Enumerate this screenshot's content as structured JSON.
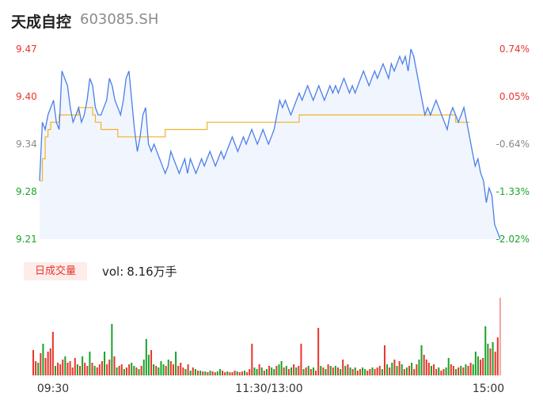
{
  "header": {
    "name": "天成自控",
    "code": "603085.SH"
  },
  "volume_panel": {
    "badge": "日成交量",
    "vol_label": "vol:",
    "vol_value": "8.16万手"
  },
  "colors": {
    "price_line": "#4a7fe8",
    "avg_line": "#f0b429",
    "up": "#e8362c",
    "down": "#1aa32a",
    "neutral": "#888888"
  },
  "chart_data": [
    {
      "type": "line",
      "title": "",
      "x_labels": [
        "09:30",
        "11:30/13:00",
        "15:00"
      ],
      "y_left_ticks": [
        "9.47",
        "9.40",
        "9.34",
        "9.28",
        "9.21"
      ],
      "y_right_ticks": [
        "0.74%",
        "0.05%",
        "-0.64%",
        "-1.33%",
        "-2.02%"
      ],
      "ylim": [
        9.21,
        9.47
      ],
      "series": [
        {
          "values": [
            9.29,
            9.37,
            9.36,
            9.38,
            9.39,
            9.4,
            9.37,
            9.36,
            9.44,
            9.43,
            9.42,
            9.39,
            9.37,
            9.38,
            9.39,
            9.37,
            9.38,
            9.4,
            9.43,
            9.42,
            9.39,
            9.38,
            9.38,
            9.39,
            9.4,
            9.43,
            9.42,
            9.4,
            9.39,
            9.38,
            9.4,
            9.43,
            9.44,
            9.4,
            9.36,
            9.33,
            9.35,
            9.38,
            9.39,
            9.34,
            9.33,
            9.34,
            9.33,
            9.32,
            9.31,
            9.3,
            9.31,
            9.33,
            9.32,
            9.31,
            9.3,
            9.31,
            9.32,
            9.3,
            9.32,
            9.31,
            9.3,
            9.31,
            9.32,
            9.31,
            9.32,
            9.33,
            9.32,
            9.31,
            9.32,
            9.33,
            9.32,
            9.33,
            9.34,
            9.35,
            9.34,
            9.33,
            9.34,
            9.35,
            9.34,
            9.35,
            9.36,
            9.35,
            9.34,
            9.35,
            9.36,
            9.35,
            9.34,
            9.35,
            9.36,
            9.38,
            9.4,
            9.39,
            9.4,
            9.39,
            9.38,
            9.39,
            9.4,
            9.41,
            9.4,
            9.41,
            9.42,
            9.41,
            9.4,
            9.41,
            9.42,
            9.41,
            9.4,
            9.41,
            9.42,
            9.41,
            9.42,
            9.41,
            9.42,
            9.43,
            9.42,
            9.41,
            9.42,
            9.41,
            9.42,
            9.43,
            9.44,
            9.43,
            9.42,
            9.43,
            9.44,
            9.43,
            9.44,
            9.45,
            9.44,
            9.43,
            9.45,
            9.44,
            9.45,
            9.46,
            9.45,
            9.46,
            9.44,
            9.47,
            9.46,
            9.44,
            9.42,
            9.4,
            9.38,
            9.39,
            9.38,
            9.39,
            9.4,
            9.39,
            9.38,
            9.37,
            9.36,
            9.38,
            9.39,
            9.38,
            9.37,
            9.38,
            9.39,
            9.37,
            9.35,
            9.33,
            9.31,
            9.32,
            9.3,
            9.29,
            9.26,
            9.28,
            9.27,
            9.23,
            9.22,
            9.21
          ],
          "color": "#4a7fe8"
        },
        {
          "values": [
            9.29,
            9.32,
            9.35,
            9.36,
            9.37,
            9.37,
            9.37,
            9.38,
            9.38,
            9.38,
            9.38,
            9.38,
            9.38,
            9.38,
            9.39,
            9.39,
            9.39,
            9.39,
            9.39,
            9.38,
            9.37,
            9.37,
            9.36,
            9.36,
            9.36,
            9.36,
            9.36,
            9.36,
            9.35,
            9.35,
            9.35,
            9.35,
            9.35,
            9.35,
            9.35,
            9.35,
            9.35,
            9.35,
            9.35,
            9.35,
            9.35,
            9.35,
            9.35,
            9.35,
            9.35,
            9.36,
            9.36,
            9.36,
            9.36,
            9.36,
            9.36,
            9.36,
            9.36,
            9.36,
            9.36,
            9.36,
            9.36,
            9.36,
            9.36,
            9.36,
            9.37,
            9.37,
            9.37,
            9.37,
            9.37,
            9.37,
            9.37,
            9.37,
            9.37,
            9.37,
            9.37,
            9.37,
            9.37,
            9.37,
            9.37,
            9.37,
            9.37,
            9.37,
            9.37,
            9.37,
            9.37,
            9.37,
            9.37,
            9.37,
            9.37,
            9.37,
            9.37,
            9.37,
            9.37,
            9.37,
            9.37,
            9.37,
            9.37,
            9.38,
            9.38,
            9.38,
            9.38,
            9.38,
            9.38,
            9.38,
            9.38,
            9.38,
            9.38,
            9.38,
            9.38,
            9.38,
            9.38,
            9.38,
            9.38,
            9.38,
            9.38,
            9.38,
            9.38,
            9.38,
            9.38,
            9.38,
            9.38,
            9.38,
            9.38,
            9.38,
            9.38,
            9.38,
            9.38,
            9.38,
            9.38,
            9.38,
            9.38,
            9.38,
            9.38,
            9.38,
            9.38,
            9.38,
            9.38,
            9.38,
            9.38,
            9.38,
            9.38,
            9.38,
            9.38,
            9.38,
            9.38,
            9.38,
            9.38,
            9.38,
            9.38,
            9.38,
            9.38,
            9.38,
            9.38,
            9.37,
            9.37,
            9.37,
            9.37,
            9.37,
            9.37
          ],
          "color": "#f0b429"
        }
      ]
    },
    {
      "type": "bar",
      "title": "",
      "bars": [
        [
          32,
          "u"
        ],
        [
          18,
          "u"
        ],
        [
          16,
          "d"
        ],
        [
          28,
          "u"
        ],
        [
          40,
          "d"
        ],
        [
          22,
          "u"
        ],
        [
          30,
          "u"
        ],
        [
          34,
          "u"
        ],
        [
          55,
          "u"
        ],
        [
          12,
          "d"
        ],
        [
          16,
          "u"
        ],
        [
          14,
          "u"
        ],
        [
          20,
          "u"
        ],
        [
          24,
          "d"
        ],
        [
          16,
          "u"
        ],
        [
          18,
          "u"
        ],
        [
          10,
          "u"
        ],
        [
          22,
          "u"
        ],
        [
          14,
          "d"
        ],
        [
          12,
          "u"
        ],
        [
          24,
          "d"
        ],
        [
          16,
          "u"
        ],
        [
          12,
          "u"
        ],
        [
          30,
          "d"
        ],
        [
          16,
          "u"
        ],
        [
          12,
          "d"
        ],
        [
          10,
          "u"
        ],
        [
          14,
          "u"
        ],
        [
          18,
          "u"
        ],
        [
          30,
          "d"
        ],
        [
          14,
          "u"
        ],
        [
          20,
          "u"
        ],
        [
          65,
          "d"
        ],
        [
          24,
          "u"
        ],
        [
          10,
          "d"
        ],
        [
          12,
          "u"
        ],
        [
          14,
          "u"
        ],
        [
          8,
          "d"
        ],
        [
          10,
          "u"
        ],
        [
          14,
          "u"
        ],
        [
          16,
          "d"
        ],
        [
          12,
          "d"
        ],
        [
          10,
          "u"
        ],
        [
          8,
          "d"
        ],
        [
          12,
          "u"
        ],
        [
          20,
          "d"
        ],
        [
          46,
          "d"
        ],
        [
          26,
          "d"
        ],
        [
          32,
          "u"
        ],
        [
          14,
          "d"
        ],
        [
          12,
          "u"
        ],
        [
          10,
          "d"
        ],
        [
          18,
          "d"
        ],
        [
          14,
          "d"
        ],
        [
          12,
          "u"
        ],
        [
          20,
          "d"
        ],
        [
          18,
          "u"
        ],
        [
          14,
          "u"
        ],
        [
          30,
          "d"
        ],
        [
          12,
          "u"
        ],
        [
          16,
          "u"
        ],
        [
          10,
          "u"
        ],
        [
          8,
          "d"
        ],
        [
          14,
          "u"
        ],
        [
          6,
          "d"
        ],
        [
          10,
          "u"
        ],
        [
          8,
          "d"
        ],
        [
          6,
          "u"
        ],
        [
          6,
          "d"
        ],
        [
          5,
          "u"
        ],
        [
          5,
          "d"
        ],
        [
          4,
          "u"
        ],
        [
          6,
          "d"
        ],
        [
          5,
          "u"
        ],
        [
          4,
          "u"
        ],
        [
          5,
          "d"
        ],
        [
          8,
          "d"
        ],
        [
          6,
          "u"
        ],
        [
          4,
          "u"
        ],
        [
          5,
          "d"
        ],
        [
          4,
          "u"
        ],
        [
          4,
          "u"
        ],
        [
          6,
          "u"
        ],
        [
          5,
          "d"
        ],
        [
          4,
          "u"
        ],
        [
          5,
          "u"
        ],
        [
          6,
          "d"
        ],
        [
          4,
          "u"
        ],
        [
          8,
          "u"
        ],
        [
          40,
          "u"
        ],
        [
          10,
          "d"
        ],
        [
          8,
          "d"
        ],
        [
          14,
          "u"
        ],
        [
          10,
          "d"
        ],
        [
          6,
          "u"
        ],
        [
          8,
          "d"
        ],
        [
          12,
          "u"
        ],
        [
          10,
          "d"
        ],
        [
          8,
          "d"
        ],
        [
          12,
          "u"
        ],
        [
          14,
          "d"
        ],
        [
          18,
          "d"
        ],
        [
          10,
          "u"
        ],
        [
          12,
          "d"
        ],
        [
          8,
          "u"
        ],
        [
          10,
          "d"
        ],
        [
          14,
          "u"
        ],
        [
          10,
          "d"
        ],
        [
          12,
          "u"
        ],
        [
          40,
          "u"
        ],
        [
          8,
          "d"
        ],
        [
          10,
          "u"
        ],
        [
          12,
          "d"
        ],
        [
          8,
          "u"
        ],
        [
          10,
          "d"
        ],
        [
          6,
          "u"
        ],
        [
          60,
          "u"
        ],
        [
          12,
          "d"
        ],
        [
          10,
          "u"
        ],
        [
          8,
          "d"
        ],
        [
          14,
          "u"
        ],
        [
          12,
          "d"
        ],
        [
          10,
          "u"
        ],
        [
          12,
          "d"
        ],
        [
          10,
          "u"
        ],
        [
          8,
          "d"
        ],
        [
          20,
          "u"
        ],
        [
          12,
          "d"
        ],
        [
          14,
          "u"
        ],
        [
          10,
          "d"
        ],
        [
          8,
          "u"
        ],
        [
          10,
          "d"
        ],
        [
          6,
          "u"
        ],
        [
          8,
          "u"
        ],
        [
          10,
          "d"
        ],
        [
          8,
          "d"
        ],
        [
          6,
          "u"
        ],
        [
          8,
          "u"
        ],
        [
          10,
          "d"
        ],
        [
          8,
          "u"
        ],
        [
          10,
          "u"
        ],
        [
          12,
          "u"
        ],
        [
          8,
          "d"
        ],
        [
          38,
          "u"
        ],
        [
          14,
          "d"
        ],
        [
          10,
          "u"
        ],
        [
          16,
          "d"
        ],
        [
          20,
          "u"
        ],
        [
          12,
          "d"
        ],
        [
          18,
          "u"
        ],
        [
          14,
          "d"
        ],
        [
          8,
          "u"
        ],
        [
          10,
          "d"
        ],
        [
          12,
          "u"
        ],
        [
          16,
          "d"
        ],
        [
          8,
          "u"
        ],
        [
          14,
          "u"
        ],
        [
          20,
          "d"
        ],
        [
          38,
          "d"
        ],
        [
          26,
          "u"
        ],
        [
          20,
          "u"
        ],
        [
          16,
          "u"
        ],
        [
          12,
          "d"
        ],
        [
          14,
          "u"
        ],
        [
          8,
          "u"
        ],
        [
          10,
          "d"
        ],
        [
          6,
          "u"
        ],
        [
          8,
          "u"
        ],
        [
          10,
          "d"
        ],
        [
          22,
          "d"
        ],
        [
          14,
          "u"
        ],
        [
          12,
          "u"
        ],
        [
          8,
          "d"
        ],
        [
          10,
          "u"
        ],
        [
          12,
          "d"
        ],
        [
          10,
          "u"
        ],
        [
          14,
          "d"
        ],
        [
          12,
          "u"
        ],
        [
          16,
          "u"
        ],
        [
          14,
          "d"
        ],
        [
          30,
          "d"
        ],
        [
          24,
          "d"
        ],
        [
          20,
          "u"
        ],
        [
          22,
          "u"
        ],
        [
          62,
          "d"
        ],
        [
          40,
          "d"
        ],
        [
          34,
          "u"
        ],
        [
          42,
          "d"
        ],
        [
          30,
          "u"
        ],
        [
          48,
          "u"
        ],
        [
          98,
          "n"
        ]
      ]
    }
  ]
}
